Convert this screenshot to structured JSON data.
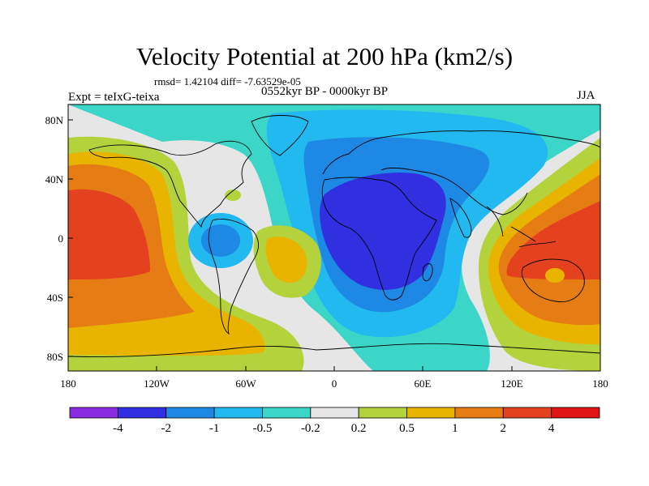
{
  "title": "Velocity Potential at 200 hPa (km2/s)",
  "stats_line": "rmsd= 1.42104 diff= -7.63529e-05",
  "left_label": "Expt = teIxG-teixa",
  "center_label": "0552kyr BP - 0000kyr BP",
  "right_label": "JJA",
  "axes": {
    "x_ticks": [
      "180",
      "120W",
      "60W",
      "0",
      "60E",
      "120E",
      "180"
    ],
    "y_ticks": [
      "80N",
      "40N",
      "0",
      "40S",
      "80S"
    ]
  },
  "colorbar": {
    "labels": [
      "-4",
      "-2",
      "-1",
      "-0.5",
      "-0.2",
      "0.2",
      "0.5",
      "1",
      "2",
      "4"
    ],
    "colors": [
      "#8a2be2",
      "#3030e0",
      "#1e88e5",
      "#22b8f0",
      "#3cd6c8",
      "#e6e6e6",
      "#b4d23c",
      "#e8b400",
      "#e67c14",
      "#e4421e",
      "#e01414"
    ]
  },
  "palette": {
    "ocean_bg": "#3cd6c8",
    "neutral": "#e6e6e6",
    "lev_p02": "#b4d23c",
    "lev_p05": "#e8b400",
    "lev_p1": "#e67c14",
    "lev_p2": "#e4421e",
    "lev_m05": "#22b8f0",
    "lev_m1": "#1e88e5",
    "lev_m2": "#3030e0"
  }
}
